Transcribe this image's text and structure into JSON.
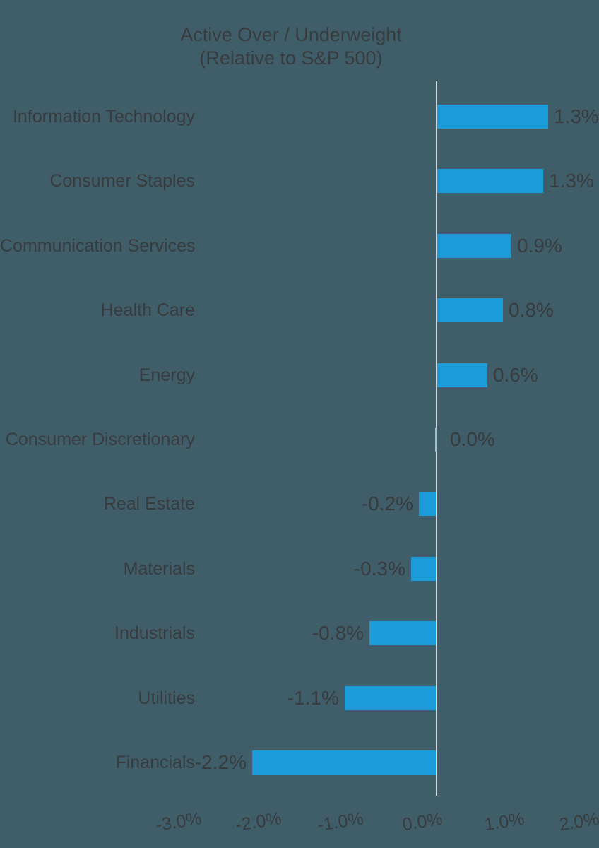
{
  "title": {
    "line1": "Active Over / Underweight",
    "line2": "(Relative to S&P 500)"
  },
  "colors": {
    "background": "#405E6A",
    "bar": "#1B9CD8",
    "zero_bar": "#8FC6DE",
    "axis_line": "#D4D9DB",
    "text": "#383C3E"
  },
  "chart_data": {
    "type": "bar",
    "orientation": "horizontal",
    "title": "Active Over / Underweight",
    "subtitle": "(Relative to S&P 500)",
    "unit": "percent",
    "grid": false,
    "legend": false,
    "x_axis": {
      "tick_labels": [
        "-3.0%",
        "-2.0%",
        "-1.0%",
        "0.0%",
        "1.0%",
        "2.0%"
      ],
      "range_pct": [
        -3.0,
        2.0
      ]
    },
    "categories": [
      "Information Technology",
      "Consumer Staples",
      "Communication Services",
      "Health Care",
      "Energy",
      "Consumer Discretionary",
      "Real Estate",
      "Materials",
      "Industrials",
      "Utilities",
      "Financials"
    ],
    "values": [
      1.3,
      1.3,
      0.9,
      0.8,
      0.6,
      0.0,
      -0.2,
      -0.3,
      -0.8,
      -1.1,
      -2.2
    ],
    "rows": [
      {
        "sector": "Information Technology",
        "label": "1.3%",
        "value": 1.3,
        "bar_value": 1.34
      },
      {
        "sector": "Consumer Staples",
        "label": "1.3%",
        "value": 1.3,
        "bar_value": 1.28
      },
      {
        "sector": "Communication Services",
        "label": "0.9%",
        "value": 0.9,
        "bar_value": 0.89
      },
      {
        "sector": "Health Care",
        "label": "0.8%",
        "value": 0.8,
        "bar_value": 0.79
      },
      {
        "sector": "Energy",
        "label": "0.6%",
        "value": 0.6,
        "bar_value": 0.6
      },
      {
        "sector": "Consumer Discretionary",
        "label": "0.0%",
        "value": 0.0,
        "bar_value": 0.0
      },
      {
        "sector": "Real Estate",
        "label": "-0.2%",
        "value": -0.2,
        "bar_value": -0.2
      },
      {
        "sector": "Materials",
        "label": "-0.3%",
        "value": -0.3,
        "bar_value": -0.3
      },
      {
        "sector": "Industrials",
        "label": "-0.8%",
        "value": -0.8,
        "bar_value": -0.8
      },
      {
        "sector": "Utilities",
        "label": "-1.1%",
        "value": -1.1,
        "bar_value": -1.1
      },
      {
        "sector": "Financials",
        "label": "-2.2%",
        "value": -2.2,
        "bar_value": -2.21
      }
    ]
  }
}
